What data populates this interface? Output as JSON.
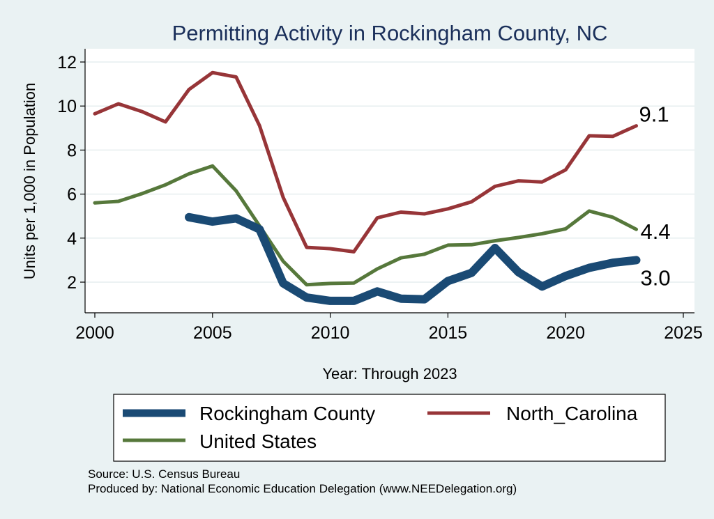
{
  "chart_data": {
    "type": "line",
    "title": "Permitting Activity in Rockingham County, NC",
    "xlabel": "Year: Through 2023",
    "ylabel": "Units per 1,000 in Population",
    "xlim": [
      2000,
      2025
    ],
    "ylim": [
      0.5,
      12.5
    ],
    "xticks": [
      2000,
      2005,
      2010,
      2015,
      2020,
      2025
    ],
    "yticks": [
      2,
      4,
      6,
      8,
      10,
      12
    ],
    "grid": true,
    "legend_position": "bottom",
    "series": [
      {
        "name": "Rockingham County",
        "color": "#1a4a74",
        "x": [
          2004,
          2005,
          2006,
          2007,
          2008,
          2009,
          2010,
          2011,
          2012,
          2013,
          2014,
          2015,
          2016,
          2017,
          2018,
          2019,
          2020,
          2021,
          2022,
          2023
        ],
        "values": [
          4.95,
          4.75,
          4.9,
          4.4,
          1.95,
          1.3,
          1.15,
          1.15,
          1.58,
          1.25,
          1.22,
          2.05,
          2.42,
          3.55,
          2.45,
          1.8,
          2.28,
          2.65,
          2.88,
          3.0
        ],
        "end_label": "3.0"
      },
      {
        "name": "North_Carolina",
        "color": "#973538",
        "x": [
          2000,
          2001,
          2002,
          2003,
          2004,
          2005,
          2006,
          2007,
          2008,
          2009,
          2010,
          2011,
          2012,
          2013,
          2014,
          2015,
          2016,
          2017,
          2018,
          2019,
          2020,
          2021,
          2022,
          2023
        ],
        "values": [
          9.65,
          10.1,
          9.75,
          9.28,
          10.75,
          11.52,
          11.32,
          9.1,
          5.85,
          3.58,
          3.52,
          3.38,
          4.92,
          5.18,
          5.1,
          5.33,
          5.65,
          6.35,
          6.6,
          6.55,
          7.1,
          8.65,
          8.62,
          9.1
        ],
        "end_label": "9.1"
      },
      {
        "name": "United States",
        "color": "#56783b",
        "x": [
          2000,
          2001,
          2002,
          2003,
          2004,
          2005,
          2006,
          2007,
          2008,
          2009,
          2010,
          2011,
          2012,
          2013,
          2014,
          2015,
          2016,
          2017,
          2018,
          2019,
          2020,
          2021,
          2022,
          2023
        ],
        "values": [
          5.6,
          5.67,
          6.02,
          6.42,
          6.92,
          7.28,
          6.15,
          4.55,
          2.95,
          1.88,
          1.94,
          1.96,
          2.6,
          3.1,
          3.27,
          3.68,
          3.7,
          3.88,
          4.03,
          4.2,
          4.42,
          5.23,
          4.95,
          4.4
        ],
        "end_label": "4.4"
      }
    ]
  },
  "footer": {
    "source": "Source: U.S. Census Bureau",
    "produced_by": "Produced by: National Economic Education Delegation (www.NEEDelegation.org)"
  }
}
